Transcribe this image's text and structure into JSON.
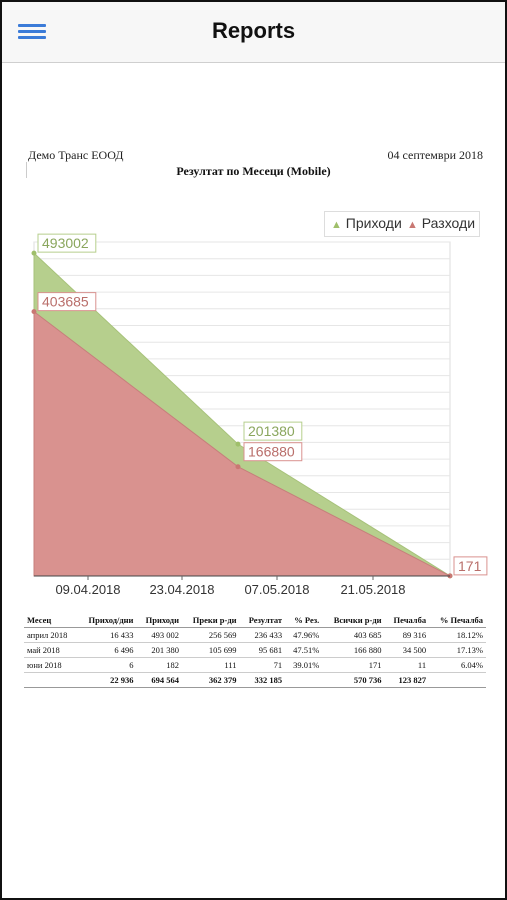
{
  "header": {
    "title": "Reports",
    "menu_icon": "hamburger-icon"
  },
  "report": {
    "company": "Демо Транс ЕООД",
    "date": "04 септември 2018",
    "title": "Резултат по Месеци (Mobile)"
  },
  "legend": [
    {
      "label": "Приходи",
      "color": "#b6cf8d"
    },
    {
      "label": "Разходи",
      "color": "#d9928f"
    }
  ],
  "chart_data": {
    "type": "area",
    "x": [
      "2018-04-01",
      "2018-05-01",
      "2018-06-01"
    ],
    "x_tick_labels": [
      "09.04.2018",
      "23.04.2018",
      "07.05.2018",
      "21.05.2018"
    ],
    "series": [
      {
        "name": "Приходи",
        "values": [
          493002,
          201380,
          182
        ],
        "labels": [
          "493002",
          "201380",
          ""
        ],
        "color": "#b6cf8d"
      },
      {
        "name": "Разходи",
        "values": [
          403685,
          166880,
          171
        ],
        "labels": [
          "403685",
          "166880",
          "171"
        ],
        "color": "#d9928f"
      }
    ],
    "ylim": [
      0,
      510000
    ],
    "grid": true,
    "legend_position": "top-right"
  },
  "table": {
    "headers": [
      "Месец",
      "Приход/дни",
      "Приходи",
      "Преки р-ди",
      "Резултат",
      "% Рез.",
      "Всички р-ди",
      "Печалба",
      "% Печалба"
    ],
    "rows": [
      [
        "април 2018",
        "16 433",
        "493 002",
        "256 569",
        "236 433",
        "47.96%",
        "403 685",
        "89 316",
        "18.12%"
      ],
      [
        "май 2018",
        "6 496",
        "201 380",
        "105 699",
        "95 681",
        "47.51%",
        "166 880",
        "34 500",
        "17.13%"
      ],
      [
        "юни 2018",
        "6",
        "182",
        "111",
        "71",
        "39.01%",
        "171",
        "11",
        "6.04%"
      ]
    ],
    "totals": [
      "",
      "22 936",
      "694 564",
      "362 379",
      "332 185",
      "",
      "570 736",
      "123 827",
      ""
    ]
  }
}
